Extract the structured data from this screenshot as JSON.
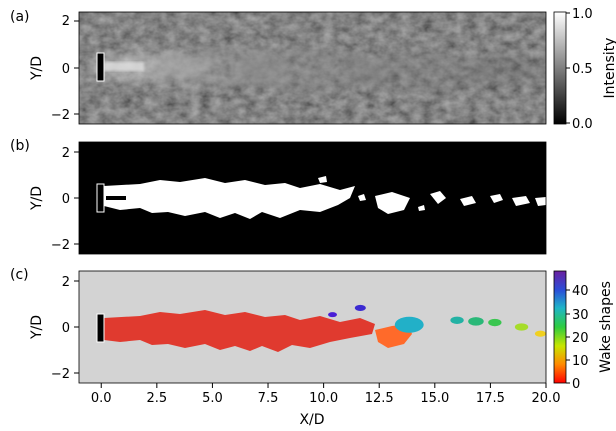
{
  "figure": {
    "panels": [
      {
        "id": "a",
        "label": "(a)",
        "ylabel": "Y/D",
        "yticks": [
          "2",
          "0",
          "−2"
        ],
        "colorbar": {
          "label": "Intensity",
          "ticks": [
            "1.0",
            "0.5",
            "0.0"
          ],
          "colormap": "grayscale"
        }
      },
      {
        "id": "b",
        "label": "(b)",
        "ylabel": "Y/D",
        "yticks": [
          "2",
          "0",
          "−2"
        ]
      },
      {
        "id": "c",
        "label": "(c)",
        "ylabel": "Y/D",
        "yticks": [
          "2",
          "0",
          "−2"
        ],
        "xlabel": "X/D",
        "xticks": [
          "0.0",
          "2.5",
          "5.0",
          "7.5",
          "10.0",
          "12.5",
          "15.0",
          "17.5",
          "20.0"
        ],
        "colorbar": {
          "label": "Wake shapes",
          "ticks": [
            "40",
            "30",
            "20",
            "10",
            "0"
          ],
          "colormap": "rainbow"
        }
      }
    ]
  },
  "chart_data": {
    "type": "heatmap",
    "xlim": [
      -1,
      20
    ],
    "ylim": [
      -2.5,
      2.5
    ],
    "intensity_range": [
      0.0,
      1.0
    ],
    "wake_shape_range": [
      0,
      48
    ],
    "colors": {
      "background_c": "#d3d3d3",
      "main_wake": "#e03a2f",
      "secondary_wake": "#ff6a2a"
    },
    "wake_blobs": [
      {
        "x": [
          -0.1,
          12.7
        ],
        "y_center": 0.0,
        "color": "#e03a2f",
        "shape_id": 1
      },
      {
        "x": [
          12.5,
          14.3
        ],
        "y_center": -0.3,
        "color": "#ff6a2a",
        "shape_id": 3
      },
      {
        "x": [
          11.4,
          11.9
        ],
        "y_center": 0.85,
        "color": "#3b2ad1",
        "shape_id": 45
      },
      {
        "x": [
          10.2,
          10.6
        ],
        "y_center": 0.55,
        "color": "#4a1ed6",
        "shape_id": 47
      },
      {
        "x": [
          15.7,
          16.3
        ],
        "y_center": 0.3,
        "color": "#23b2a4",
        "shape_id": 30
      },
      {
        "x": [
          16.5,
          17.2
        ],
        "y_center": 0.25,
        "color": "#2ab878",
        "shape_id": 26
      },
      {
        "x": [
          17.4,
          18.0
        ],
        "y_center": 0.2,
        "color": "#3ac650",
        "shape_id": 22
      },
      {
        "x": [
          18.6,
          19.2
        ],
        "y_center": 0.0,
        "color": "#a6dc2a",
        "shape_id": 16
      },
      {
        "x": [
          19.5,
          20.0
        ],
        "y_center": -0.3,
        "color": "#f0d020",
        "shape_id": 12
      },
      {
        "x": [
          13.2,
          14.5
        ],
        "y_center": 0.1,
        "color": "#22b0c8",
        "shape_id": 35
      }
    ]
  }
}
